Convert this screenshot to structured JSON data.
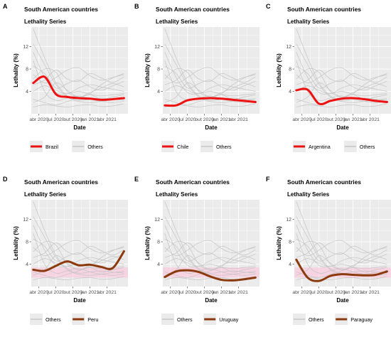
{
  "figure": {
    "panels": [
      {
        "letter": "A",
        "title": "South American countries",
        "subtitle": "Lethality Series",
        "ylabel": "Lethality (%)",
        "xlabel": "Date",
        "highlight": "Brazil",
        "others_label": "Others",
        "legend_order": "highlight-first",
        "highlight_color": "#ee1111",
        "band": false
      },
      {
        "letter": "B",
        "title": "South American countries",
        "subtitle": "Lethality Series",
        "ylabel": "Lethality (%)",
        "xlabel": "Date",
        "highlight": "Chile",
        "others_label": "Others",
        "legend_order": "highlight-first",
        "highlight_color": "#ee1111",
        "band": false
      },
      {
        "letter": "C",
        "title": "South American countries",
        "subtitle": "Lethality Series",
        "ylabel": "Lethality (%)",
        "xlabel": "Date",
        "highlight": "Argentina",
        "others_label": "Others",
        "legend_order": "highlight-first",
        "highlight_color": "#ee1111",
        "band": false
      },
      {
        "letter": "D",
        "title": "South American countries",
        "subtitle": "Lethality Series",
        "ylabel": "Lethality (%)",
        "xlabel": "Date",
        "highlight": "Peru",
        "others_label": "Others",
        "legend_order": "others-first",
        "highlight_color": "#8b3a0e",
        "band": true
      },
      {
        "letter": "E",
        "title": "South American countries",
        "subtitle": "Lethality Series",
        "ylabel": "Lethality (%)",
        "xlabel": "Date",
        "highlight": "Uruguay",
        "others_label": "Others",
        "legend_order": "others-first",
        "highlight_color": "#8b3a0e",
        "band": true
      },
      {
        "letter": "F",
        "title": "South American countries",
        "subtitle": "Lethality Series",
        "ylabel": "Lethality (%)",
        "xlabel": "Date",
        "highlight": "Paraguay",
        "others_label": "Others",
        "legend_order": "others-first",
        "highlight_color": "#8b3a0e",
        "band": true
      }
    ],
    "colors": {
      "panel_bg": "#ebebeb",
      "grid": "#ffffff",
      "others_line": "#c4c4c4",
      "band": "#ffc0d8"
    }
  },
  "chart_data": [
    {
      "type": "line",
      "title": "South American countries",
      "subtitle": "Lethality Series",
      "xlabel": "Date",
      "ylabel": "Lethality (%)",
      "x_ticks": [
        "abr 2020",
        "jul 2020",
        "out 2020",
        "jan 2021",
        "abr 2021"
      ],
      "y_ticks": [
        4,
        8,
        12
      ],
      "ylim": [
        0,
        15.5
      ],
      "grid": true,
      "legend": "bottom",
      "x": [
        "2020-03",
        "2020-05",
        "2020-07",
        "2020-09",
        "2020-11",
        "2021-01",
        "2021-03",
        "2021-05",
        "2021-07"
      ],
      "series": [
        {
          "name": "Brazil",
          "values": [
            5.5,
            6.6,
            3.5,
            3.0,
            2.8,
            2.7,
            2.5,
            2.6,
            2.8
          ]
        },
        {
          "name": "Others"
        }
      ]
    },
    {
      "type": "line",
      "title": "South American countries",
      "subtitle": "Lethality Series",
      "xlabel": "Date",
      "ylabel": "Lethality (%)",
      "x_ticks": [
        "abr 2020",
        "jul 2020",
        "out 2020",
        "jan 2021",
        "abr 2021"
      ],
      "y_ticks": [
        4,
        8,
        12
      ],
      "ylim": [
        0,
        15.5
      ],
      "grid": true,
      "legend": "bottom",
      "x": [
        "2020-03",
        "2020-05",
        "2020-07",
        "2020-09",
        "2020-11",
        "2021-01",
        "2021-03",
        "2021-05",
        "2021-07"
      ],
      "series": [
        {
          "name": "Chile",
          "values": [
            1.5,
            1.5,
            2.4,
            2.7,
            2.8,
            2.7,
            2.5,
            2.3,
            2.1
          ]
        },
        {
          "name": "Others"
        }
      ]
    },
    {
      "type": "line",
      "title": "South American countries",
      "subtitle": "Lethality Series",
      "xlabel": "Date",
      "ylabel": "Lethality (%)",
      "x_ticks": [
        "abr 2020",
        "jul 2020",
        "out 2020",
        "jan 2021",
        "abr 2021"
      ],
      "y_ticks": [
        4,
        8,
        12
      ],
      "ylim": [
        0,
        15.5
      ],
      "grid": true,
      "legend": "bottom",
      "x": [
        "2020-03",
        "2020-05",
        "2020-07",
        "2020-09",
        "2020-11",
        "2021-01",
        "2021-03",
        "2021-05",
        "2021-07"
      ],
      "series": [
        {
          "name": "Argentina",
          "values": [
            4.2,
            4.3,
            1.8,
            2.3,
            2.7,
            2.8,
            2.6,
            2.3,
            2.1
          ]
        },
        {
          "name": "Others"
        }
      ]
    },
    {
      "type": "line",
      "title": "South American countries",
      "subtitle": "Lethality Series",
      "xlabel": "Date",
      "ylabel": "Lethality (%)",
      "x_ticks": [
        "abr 2020",
        "jul 2020",
        "out 2020",
        "jan 2021",
        "abr 2021"
      ],
      "y_ticks": [
        4,
        8,
        12
      ],
      "ylim": [
        0,
        15.5
      ],
      "grid": true,
      "legend": "bottom",
      "x": [
        "2020-03",
        "2020-05",
        "2020-07",
        "2020-09",
        "2020-11",
        "2021-01",
        "2021-03",
        "2021-05",
        "2021-07"
      ],
      "series": [
        {
          "name": "Peru",
          "values": [
            3.0,
            2.8,
            3.7,
            4.5,
            3.8,
            3.9,
            3.5,
            3.3,
            6.3
          ]
        },
        {
          "name": "Others"
        }
      ]
    },
    {
      "type": "line",
      "title": "South American countries",
      "subtitle": "Lethality Series",
      "xlabel": "Date",
      "ylabel": "Lethality (%)",
      "x_ticks": [
        "abr 2020",
        "jul 2020",
        "out 2020",
        "jan 2021",
        "abr 2021"
      ],
      "y_ticks": [
        4,
        8,
        12
      ],
      "ylim": [
        0,
        15.5
      ],
      "grid": true,
      "legend": "bottom",
      "x": [
        "2020-03",
        "2020-05",
        "2020-07",
        "2020-09",
        "2020-11",
        "2021-01",
        "2021-03",
        "2021-05",
        "2021-07"
      ],
      "series": [
        {
          "name": "Uruguay",
          "values": [
            1.7,
            2.7,
            2.9,
            2.6,
            1.8,
            1.2,
            1.1,
            1.3,
            1.6
          ]
        },
        {
          "name": "Others"
        }
      ]
    },
    {
      "type": "line",
      "title": "South American countries",
      "subtitle": "Lethality Series",
      "xlabel": "Date",
      "ylabel": "Lethality (%)",
      "x_ticks": [
        "abr 2020",
        "jul 2020",
        "out 2020",
        "jan 2021",
        "abr 2021"
      ],
      "y_ticks": [
        4,
        8,
        12
      ],
      "ylim": [
        0,
        15.5
      ],
      "grid": true,
      "legend": "bottom",
      "x": [
        "2020-03",
        "2020-05",
        "2020-07",
        "2020-09",
        "2020-11",
        "2021-01",
        "2021-03",
        "2021-05",
        "2021-07"
      ],
      "series": [
        {
          "name": "Paraguay",
          "values": [
            4.8,
            1.6,
            1.0,
            1.9,
            2.2,
            2.1,
            2.0,
            2.1,
            2.7
          ]
        },
        {
          "name": "Others"
        }
      ]
    }
  ]
}
